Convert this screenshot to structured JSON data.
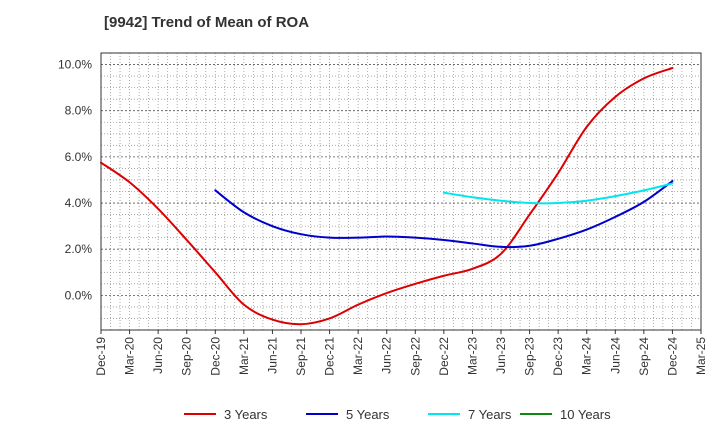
{
  "title": "[9942]  Trend of Mean of ROA",
  "chart_data": {
    "type": "line",
    "title": "[9942]  Trend of Mean of ROA",
    "xlabel": "",
    "ylabel": "",
    "x_ticks": [
      "Dec-19",
      "Mar-20",
      "Jun-20",
      "Sep-20",
      "Dec-20",
      "Mar-21",
      "Jun-21",
      "Sep-21",
      "Dec-21",
      "Mar-22",
      "Jun-22",
      "Sep-22",
      "Dec-22",
      "Mar-23",
      "Jun-23",
      "Sep-23",
      "Dec-23",
      "Mar-24",
      "Jun-24",
      "Sep-24",
      "Dec-24",
      "Mar-25"
    ],
    "y_ticks": [
      "0.0%",
      "2.0%",
      "4.0%",
      "6.0%",
      "8.0%",
      "10.0%"
    ],
    "ylim": [
      -1.5,
      10.5
    ],
    "grid": true,
    "legend_position": "bottom",
    "series": [
      {
        "name": "3 Years",
        "color": "#dd0000",
        "x": [
          "Dec-19",
          "Mar-20",
          "Jun-20",
          "Sep-20",
          "Dec-20",
          "Mar-21",
          "Jun-21",
          "Sep-21",
          "Dec-21",
          "Mar-22",
          "Jun-22",
          "Sep-22",
          "Dec-22",
          "Mar-23",
          "Jun-23",
          "Sep-23",
          "Dec-23",
          "Mar-24",
          "Jun-24",
          "Sep-24",
          "Dec-24"
        ],
        "values": [
          5.75,
          4.9,
          3.75,
          2.4,
          1.0,
          -0.4,
          -1.05,
          -1.25,
          -1.0,
          -0.4,
          0.1,
          0.5,
          0.85,
          1.15,
          1.8,
          3.5,
          5.3,
          7.3,
          8.6,
          9.4,
          9.85
        ]
      },
      {
        "name": "5 Years",
        "color": "#0000cc",
        "x": [
          "Dec-20",
          "Mar-21",
          "Jun-21",
          "Sep-21",
          "Dec-21",
          "Mar-22",
          "Jun-22",
          "Sep-22",
          "Dec-22",
          "Mar-23",
          "Jun-23",
          "Sep-23",
          "Dec-23",
          "Mar-24",
          "Jun-24",
          "Sep-24",
          "Dec-24"
        ],
        "values": [
          4.55,
          3.6,
          3.0,
          2.65,
          2.5,
          2.5,
          2.55,
          2.5,
          2.4,
          2.25,
          2.1,
          2.15,
          2.45,
          2.85,
          3.4,
          4.05,
          4.95
        ]
      },
      {
        "name": "7 Years",
        "color": "#00e5ee",
        "x": [
          "Dec-22",
          "Mar-23",
          "Jun-23",
          "Sep-23",
          "Dec-23",
          "Mar-24",
          "Jun-24",
          "Sep-24",
          "Dec-24"
        ],
        "values": [
          4.45,
          4.25,
          4.1,
          4.0,
          4.0,
          4.1,
          4.3,
          4.55,
          4.85
        ]
      },
      {
        "name": "10 Years",
        "color": "#118811",
        "x": [],
        "values": []
      }
    ]
  }
}
